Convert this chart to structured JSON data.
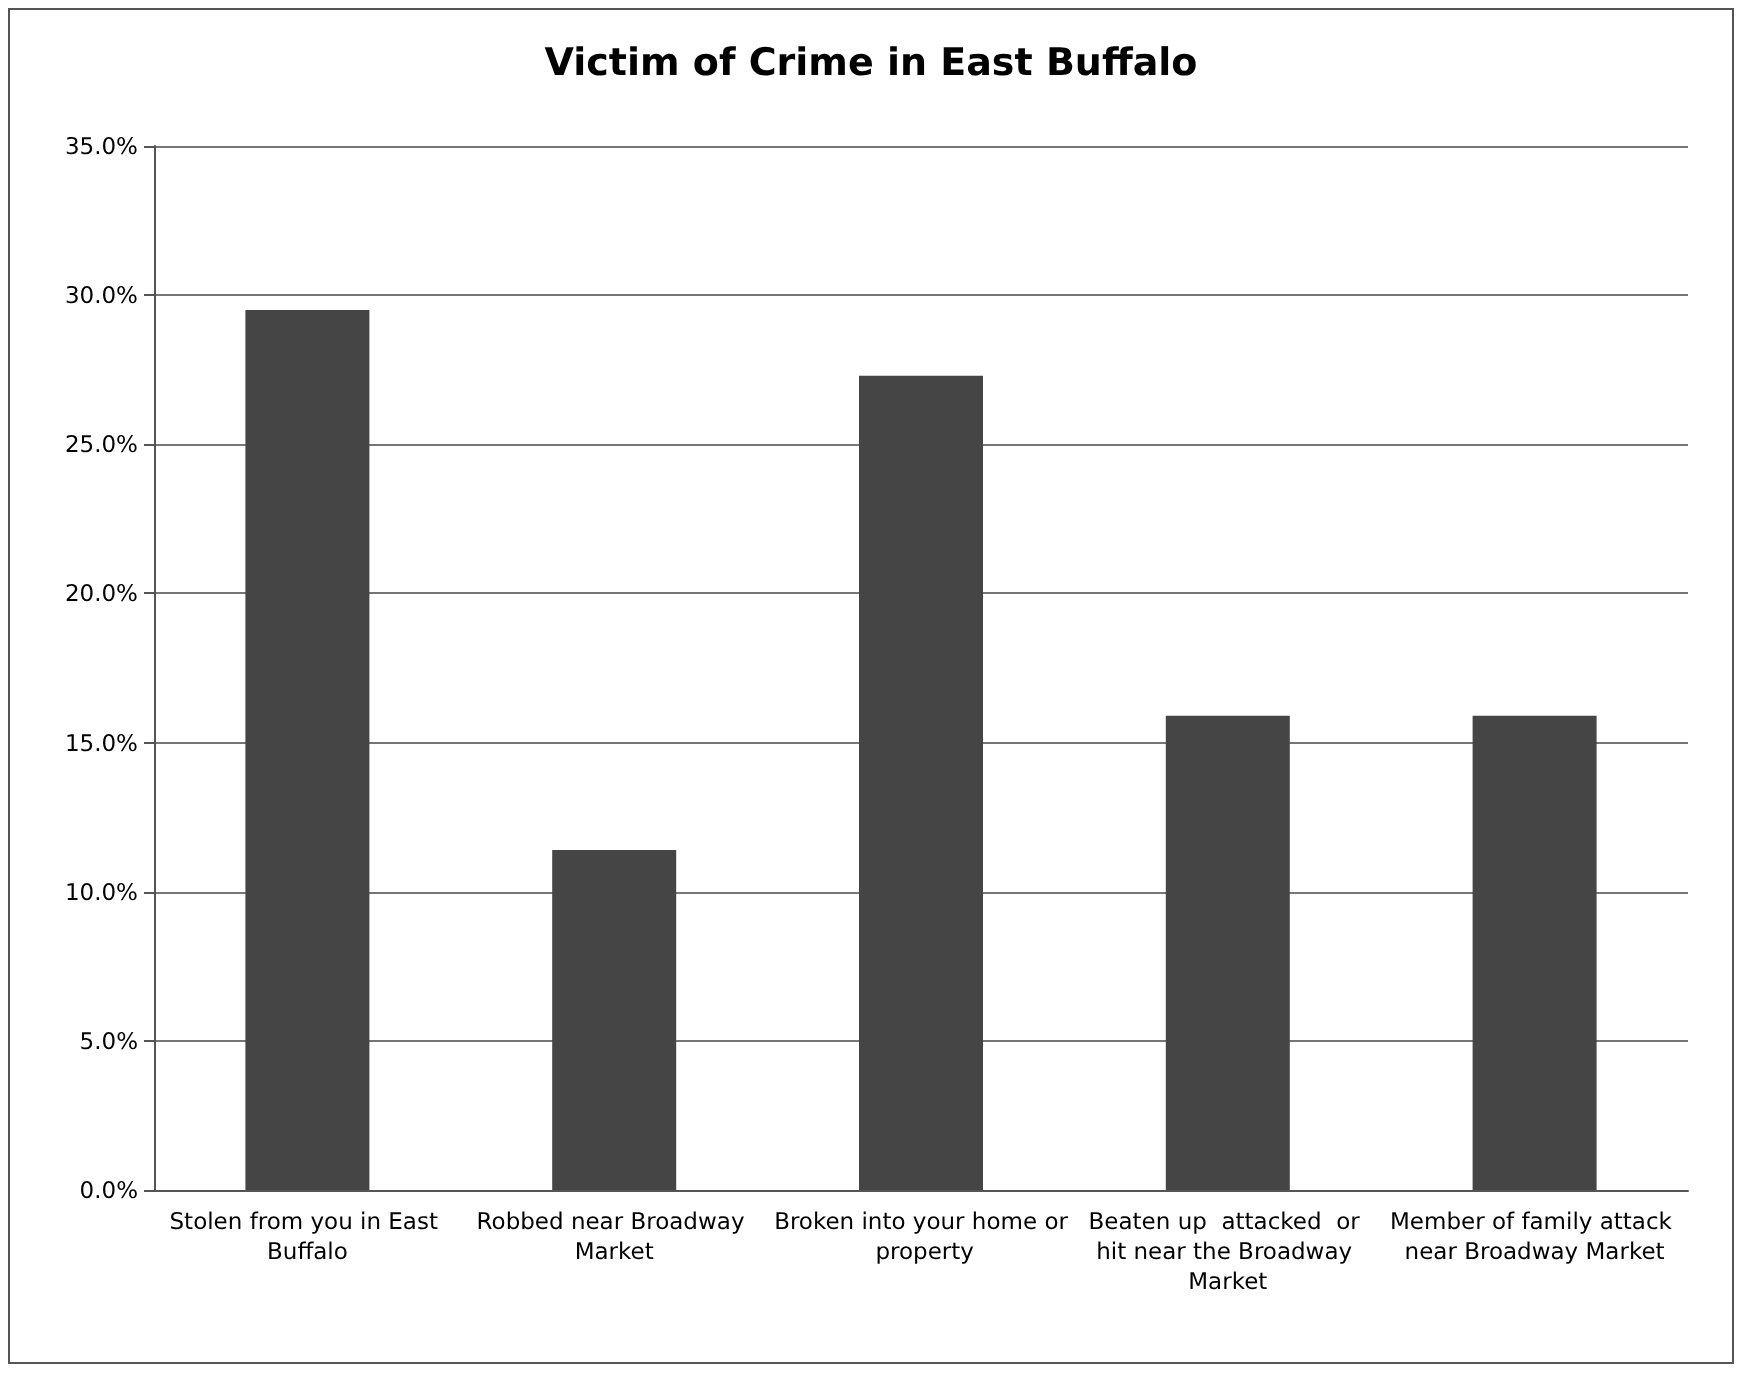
{
  "chart_data": {
    "type": "bar",
    "title": "Victim of Crime in East Buffalo",
    "categories": [
      "Stolen from you in East Buffalo",
      "Robbed near Broadway Market",
      "Broken into your home or property",
      "Beaten up  attacked  or hit near the Broadway Market",
      "Member of family attack near Broadway Market"
    ],
    "values": [
      29.5,
      11.4,
      27.3,
      15.9,
      15.9
    ],
    "color": "#454545",
    "ylim": [
      0,
      35
    ],
    "yticks": [
      {
        "value": 0,
        "label": "0.0%"
      },
      {
        "value": 5,
        "label": "5.0%"
      },
      {
        "value": 10,
        "label": "10.0%"
      },
      {
        "value": 15,
        "label": "15.0%"
      },
      {
        "value": 20,
        "label": "20.0%"
      },
      {
        "value": 25,
        "label": "25.0%"
      },
      {
        "value": 30,
        "label": "30.0%"
      },
      {
        "value": 35,
        "label": "35.0%"
      }
    ],
    "grid": "y"
  }
}
